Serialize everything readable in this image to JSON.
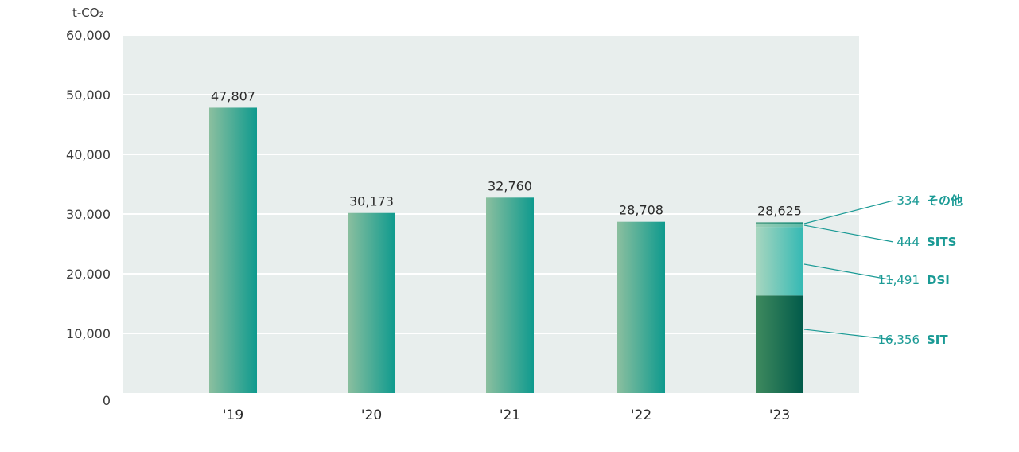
{
  "chart_data": {
    "type": "bar",
    "unit_label": "t-CO₂",
    "ylim": [
      0,
      60000
    ],
    "yticks": [
      "0",
      "10,000",
      "20,000",
      "30,000",
      "40,000",
      "50,000",
      "60,000"
    ],
    "ytick_values": [
      0,
      10000,
      20000,
      30000,
      40000,
      50000,
      60000
    ],
    "grid": true,
    "categories": [
      "'19",
      "'20",
      "'21",
      "'22",
      "'23"
    ],
    "values": [
      47807,
      30173,
      32760,
      28708,
      28625
    ],
    "value_labels": [
      "47,807",
      "30,173",
      "32,760",
      "28,708",
      "28,625"
    ],
    "stacked_breakdown": {
      "category": "'23",
      "segments": [
        {
          "name": "SIT",
          "value": 16356,
          "label": "16,356",
          "color": "#0b6a55"
        },
        {
          "name": "DSI",
          "value": 11491,
          "label": "11,491",
          "color": "#5cc2bb"
        },
        {
          "name": "SITS",
          "value": 444,
          "label": "444",
          "color": "#7fc1ad"
        },
        {
          "name": "その他",
          "value": 334,
          "label": "334",
          "color": "#3a9c86"
        }
      ]
    },
    "colors": {
      "plot_bg": "#e8eeed",
      "bar_left": "#8bbf9f",
      "bar_right": "#0e9a8e",
      "callout": "#1a9a95"
    }
  }
}
